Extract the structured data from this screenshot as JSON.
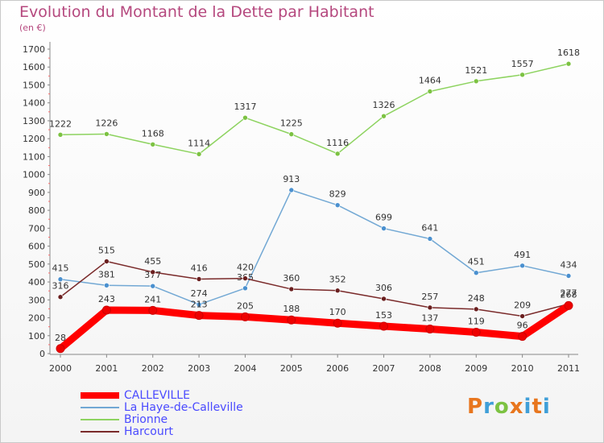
{
  "header": {
    "title": "Evolution du Montant de la Dette par Habitant",
    "unit": "(en €)"
  },
  "brand": {
    "letters": [
      "P",
      "r",
      "o",
      "x",
      "i",
      "t",
      "i"
    ],
    "colors": [
      "#e8761e",
      "#3f9fd8",
      "#7cc242",
      "#e8761e",
      "#3f9fd8",
      "#e8761e",
      "#3f9fd8"
    ]
  },
  "chart_data": {
    "type": "line",
    "title": "Evolution du Montant de la Dette par Habitant",
    "ylabel": "(en €)",
    "xlabel": "",
    "x": [
      "2000",
      "2001",
      "2002",
      "2003",
      "2004",
      "2005",
      "2006",
      "2007",
      "2008",
      "2009",
      "2010",
      "2011"
    ],
    "ylim": [
      0,
      1700
    ],
    "yticks": [
      0,
      100,
      200,
      300,
      400,
      500,
      600,
      700,
      800,
      900,
      1000,
      1100,
      1200,
      1300,
      1400,
      1500,
      1600,
      1700
    ],
    "grid": false,
    "legend": "bottom-left",
    "series": [
      {
        "name": "Brionne",
        "color": "#8dd35f",
        "marker": "#7cc242",
        "values": [
          1222,
          1226,
          1168,
          1114,
          1317,
          1225,
          1116,
          1326,
          1464,
          1521,
          1557,
          1618
        ]
      },
      {
        "name": "La Haye-de-Calleville",
        "color": "#72a8d4",
        "marker": "#4a90cf",
        "values": [
          415,
          381,
          377,
          274,
          365,
          913,
          829,
          699,
          641,
          451,
          491,
          434
        ]
      },
      {
        "name": "Harcourt",
        "color": "#7a2a2a",
        "marker": "#6a1f1f",
        "values": [
          316,
          515,
          455,
          416,
          420,
          360,
          352,
          306,
          257,
          248,
          209,
          277
        ]
      },
      {
        "name": "CALLEVILLE",
        "color": "#ff0000",
        "marker": "#ee0000",
        "values": [
          28,
          243,
          241,
          213,
          205,
          188,
          170,
          153,
          137,
          119,
          96,
          268
        ]
      }
    ],
    "legend_order": [
      "CALLEVILLE",
      "La Haye-de-Calleville",
      "Brionne",
      "Harcourt"
    ]
  }
}
